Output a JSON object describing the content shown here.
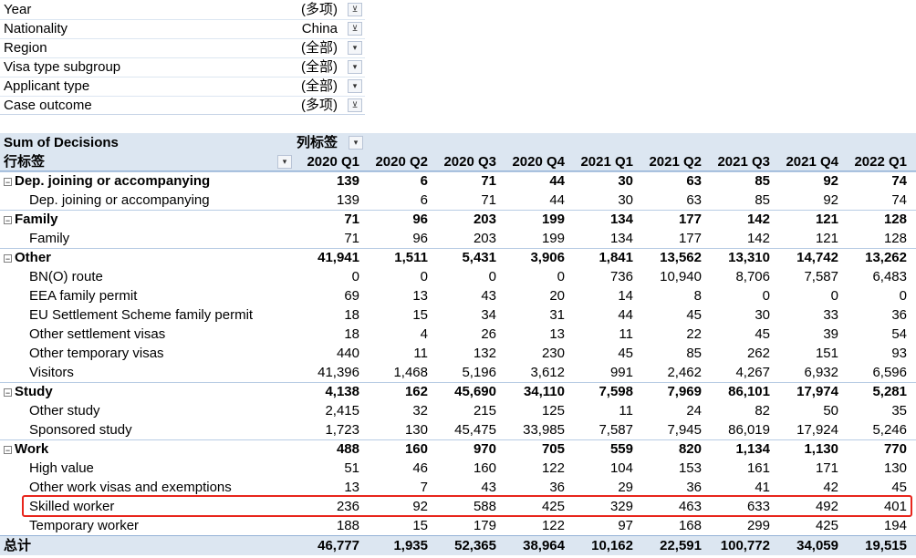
{
  "filters": [
    {
      "label": "Year",
      "value": "(多项)",
      "icon": "filter-applied-icon",
      "glyph": "⊻"
    },
    {
      "label": "Nationality",
      "value": "China",
      "icon": "filter-applied-icon",
      "glyph": "⊻"
    },
    {
      "label": "Region",
      "value": "(全部)",
      "icon": "dropdown-arrow-icon",
      "glyph": "▾"
    },
    {
      "label": "Visa type subgroup",
      "value": "(全部)",
      "icon": "dropdown-arrow-icon",
      "glyph": "▾"
    },
    {
      "label": "Applicant type",
      "value": "(全部)",
      "icon": "dropdown-arrow-icon",
      "glyph": "▾"
    },
    {
      "label": "Case outcome",
      "value": "(多项)",
      "icon": "filter-applied-icon",
      "glyph": "⊻"
    }
  ],
  "pivot": {
    "value_field": "Sum of Decisions",
    "column_labels": "列标签",
    "row_labels": "行标签",
    "dropdown_glyph": "▾",
    "expander_glyph": "−",
    "columns": [
      "2020 Q1",
      "2020 Q2",
      "2020 Q3",
      "2020 Q4",
      "2021 Q1",
      "2021 Q2",
      "2021 Q3",
      "2021 Q4",
      "2022 Q1"
    ],
    "rows": [
      {
        "type": "group",
        "label": "Dep. joining or accompanying",
        "values": [
          "139",
          "6",
          "71",
          "44",
          "30",
          "63",
          "85",
          "92",
          "74"
        ]
      },
      {
        "type": "item",
        "label": "Dep. joining or accompanying",
        "values": [
          "139",
          "6",
          "71",
          "44",
          "30",
          "63",
          "85",
          "92",
          "74"
        ]
      },
      {
        "type": "group",
        "label": "Family",
        "values": [
          "71",
          "96",
          "203",
          "199",
          "134",
          "177",
          "142",
          "121",
          "128"
        ]
      },
      {
        "type": "item",
        "label": "Family",
        "values": [
          "71",
          "96",
          "203",
          "199",
          "134",
          "177",
          "142",
          "121",
          "128"
        ]
      },
      {
        "type": "group",
        "label": "Other",
        "values": [
          "41,941",
          "1,511",
          "5,431",
          "3,906",
          "1,841",
          "13,562",
          "13,310",
          "14,742",
          "13,262"
        ]
      },
      {
        "type": "item",
        "label": "BN(O) route",
        "values": [
          "0",
          "0",
          "0",
          "0",
          "736",
          "10,940",
          "8,706",
          "7,587",
          "6,483"
        ]
      },
      {
        "type": "item",
        "label": "EEA family permit",
        "values": [
          "69",
          "13",
          "43",
          "20",
          "14",
          "8",
          "0",
          "0",
          "0"
        ]
      },
      {
        "type": "item",
        "label": "EU Settlement Scheme family permit",
        "values": [
          "18",
          "15",
          "34",
          "31",
          "44",
          "45",
          "30",
          "33",
          "36"
        ]
      },
      {
        "type": "item",
        "label": "Other settlement visas",
        "values": [
          "18",
          "4",
          "26",
          "13",
          "11",
          "22",
          "45",
          "39",
          "54"
        ]
      },
      {
        "type": "item",
        "label": "Other temporary visas",
        "values": [
          "440",
          "11",
          "132",
          "230",
          "45",
          "85",
          "262",
          "151",
          "93"
        ]
      },
      {
        "type": "item",
        "label": "Visitors",
        "values": [
          "41,396",
          "1,468",
          "5,196",
          "3,612",
          "991",
          "2,462",
          "4,267",
          "6,932",
          "6,596"
        ]
      },
      {
        "type": "group",
        "label": "Study",
        "values": [
          "4,138",
          "162",
          "45,690",
          "34,110",
          "7,598",
          "7,969",
          "86,101",
          "17,974",
          "5,281"
        ]
      },
      {
        "type": "item",
        "label": "Other study",
        "values": [
          "2,415",
          "32",
          "215",
          "125",
          "11",
          "24",
          "82",
          "50",
          "35"
        ]
      },
      {
        "type": "item",
        "label": "Sponsored study",
        "values": [
          "1,723",
          "130",
          "45,475",
          "33,985",
          "7,587",
          "7,945",
          "86,019",
          "17,924",
          "5,246"
        ]
      },
      {
        "type": "group",
        "label": "Work",
        "values": [
          "488",
          "160",
          "970",
          "705",
          "559",
          "820",
          "1,134",
          "1,130",
          "770"
        ]
      },
      {
        "type": "item",
        "label": "High value",
        "values": [
          "51",
          "46",
          "160",
          "122",
          "104",
          "153",
          "161",
          "171",
          "130"
        ]
      },
      {
        "type": "item",
        "label": "Other work visas and exemptions",
        "values": [
          "13",
          "7",
          "43",
          "36",
          "29",
          "36",
          "41",
          "42",
          "45"
        ]
      },
      {
        "type": "item",
        "label": "Skilled worker",
        "values": [
          "236",
          "92",
          "588",
          "425",
          "329",
          "463",
          "633",
          "492",
          "401"
        ]
      },
      {
        "type": "item",
        "label": "Temporary worker",
        "values": [
          "188",
          "15",
          "179",
          "122",
          "97",
          "168",
          "299",
          "425",
          "194"
        ]
      }
    ],
    "total": {
      "label": "总计",
      "values": [
        "46,777",
        "1,935",
        "52,365",
        "38,964",
        "10,162",
        "22,591",
        "100,772",
        "34,059",
        "19,515"
      ]
    }
  },
  "colors": {
    "header_bg": "#dce6f1",
    "highlight": "#e8251c",
    "border": "#95b3d7"
  }
}
